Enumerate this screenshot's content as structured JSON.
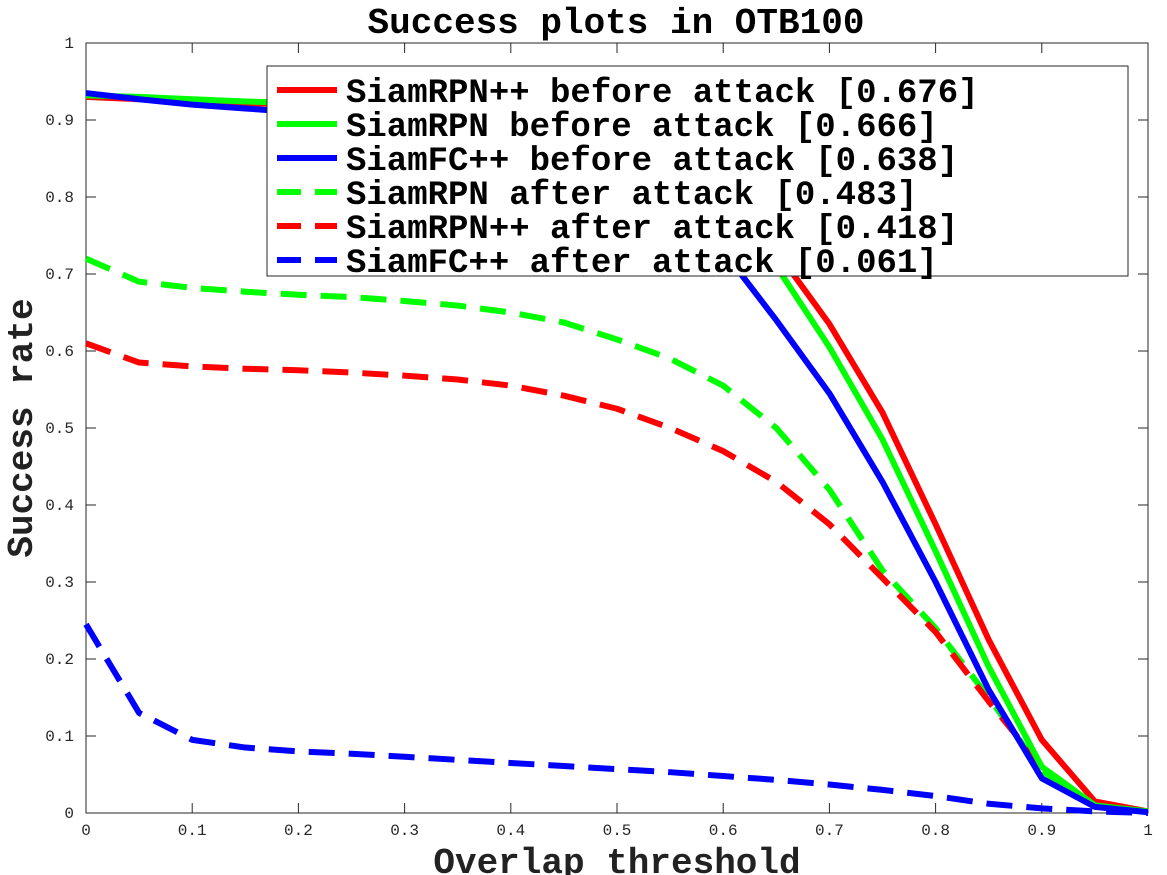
{
  "chart_data": {
    "type": "line",
    "title": "Success plots in OTB100",
    "xlabel": "Overlap threshold",
    "ylabel": "Success rate",
    "xlim": [
      0,
      1
    ],
    "ylim": [
      0,
      1
    ],
    "xticks": [
      "0",
      "0.1",
      "0.2",
      "0.3",
      "0.4",
      "0.5",
      "0.6",
      "0.7",
      "0.8",
      "0.9",
      "1"
    ],
    "yticks": [
      "0",
      "0.1",
      "0.2",
      "0.3",
      "0.4",
      "0.5",
      "0.6",
      "0.7",
      "0.8",
      "0.9",
      "1"
    ],
    "grid": false,
    "legend_position": "top-right",
    "x": [
      0,
      0.05,
      0.1,
      0.15,
      0.2,
      0.25,
      0.3,
      0.35,
      0.4,
      0.45,
      0.5,
      0.55,
      0.6,
      0.65,
      0.7,
      0.75,
      0.8,
      0.85,
      0.9,
      0.95,
      1.0
    ],
    "series": [
      {
        "name": "SiamRPN++ before attack [0.676]",
        "color": "#ff0000",
        "style": "solid",
        "values": [
          0.93,
          0.927,
          0.925,
          0.922,
          0.92,
          0.915,
          0.91,
          0.905,
          0.9,
          0.89,
          0.87,
          0.84,
          0.8,
          0.73,
          0.635,
          0.52,
          0.375,
          0.225,
          0.095,
          0.015,
          0.002
        ]
      },
      {
        "name": "SiamRPN before attack [0.666]",
        "color": "#00ff00",
        "style": "solid",
        "values": [
          0.932,
          0.93,
          0.927,
          0.924,
          0.922,
          0.917,
          0.91,
          0.903,
          0.895,
          0.885,
          0.865,
          0.835,
          0.79,
          0.71,
          0.605,
          0.485,
          0.34,
          0.19,
          0.06,
          0.01,
          0.002
        ]
      },
      {
        "name": "SiamFC++ before attack [0.638]",
        "color": "#0000ff",
        "style": "solid",
        "values": [
          0.935,
          0.927,
          0.92,
          0.915,
          0.91,
          0.905,
          0.9,
          0.89,
          0.88,
          0.865,
          0.84,
          0.8,
          0.73,
          0.64,
          0.545,
          0.43,
          0.3,
          0.16,
          0.045,
          0.008,
          0.001
        ]
      },
      {
        "name": "SiamRPN after attack [0.483]",
        "color": "#00ff00",
        "style": "dashed",
        "values": [
          0.72,
          0.69,
          0.682,
          0.677,
          0.673,
          0.67,
          0.665,
          0.659,
          0.65,
          0.637,
          0.615,
          0.59,
          0.555,
          0.5,
          0.42,
          0.315,
          0.24,
          0.15,
          0.055,
          0.01,
          0.002
        ]
      },
      {
        "name": "SiamRPN++ after attack [0.418]",
        "color": "#ff0000",
        "style": "dashed",
        "values": [
          0.61,
          0.585,
          0.58,
          0.577,
          0.575,
          0.572,
          0.568,
          0.563,
          0.555,
          0.542,
          0.525,
          0.5,
          0.47,
          0.43,
          0.375,
          0.305,
          0.235,
          0.145,
          0.06,
          0.01,
          0.002
        ]
      },
      {
        "name": "SiamFC++ after attack [0.061]",
        "color": "#0000ff",
        "style": "dashed",
        "values": [
          0.245,
          0.13,
          0.095,
          0.085,
          0.08,
          0.077,
          0.073,
          0.069,
          0.065,
          0.061,
          0.057,
          0.053,
          0.048,
          0.043,
          0.037,
          0.03,
          0.022,
          0.012,
          0.006,
          0.002,
          0.0
        ]
      }
    ]
  }
}
